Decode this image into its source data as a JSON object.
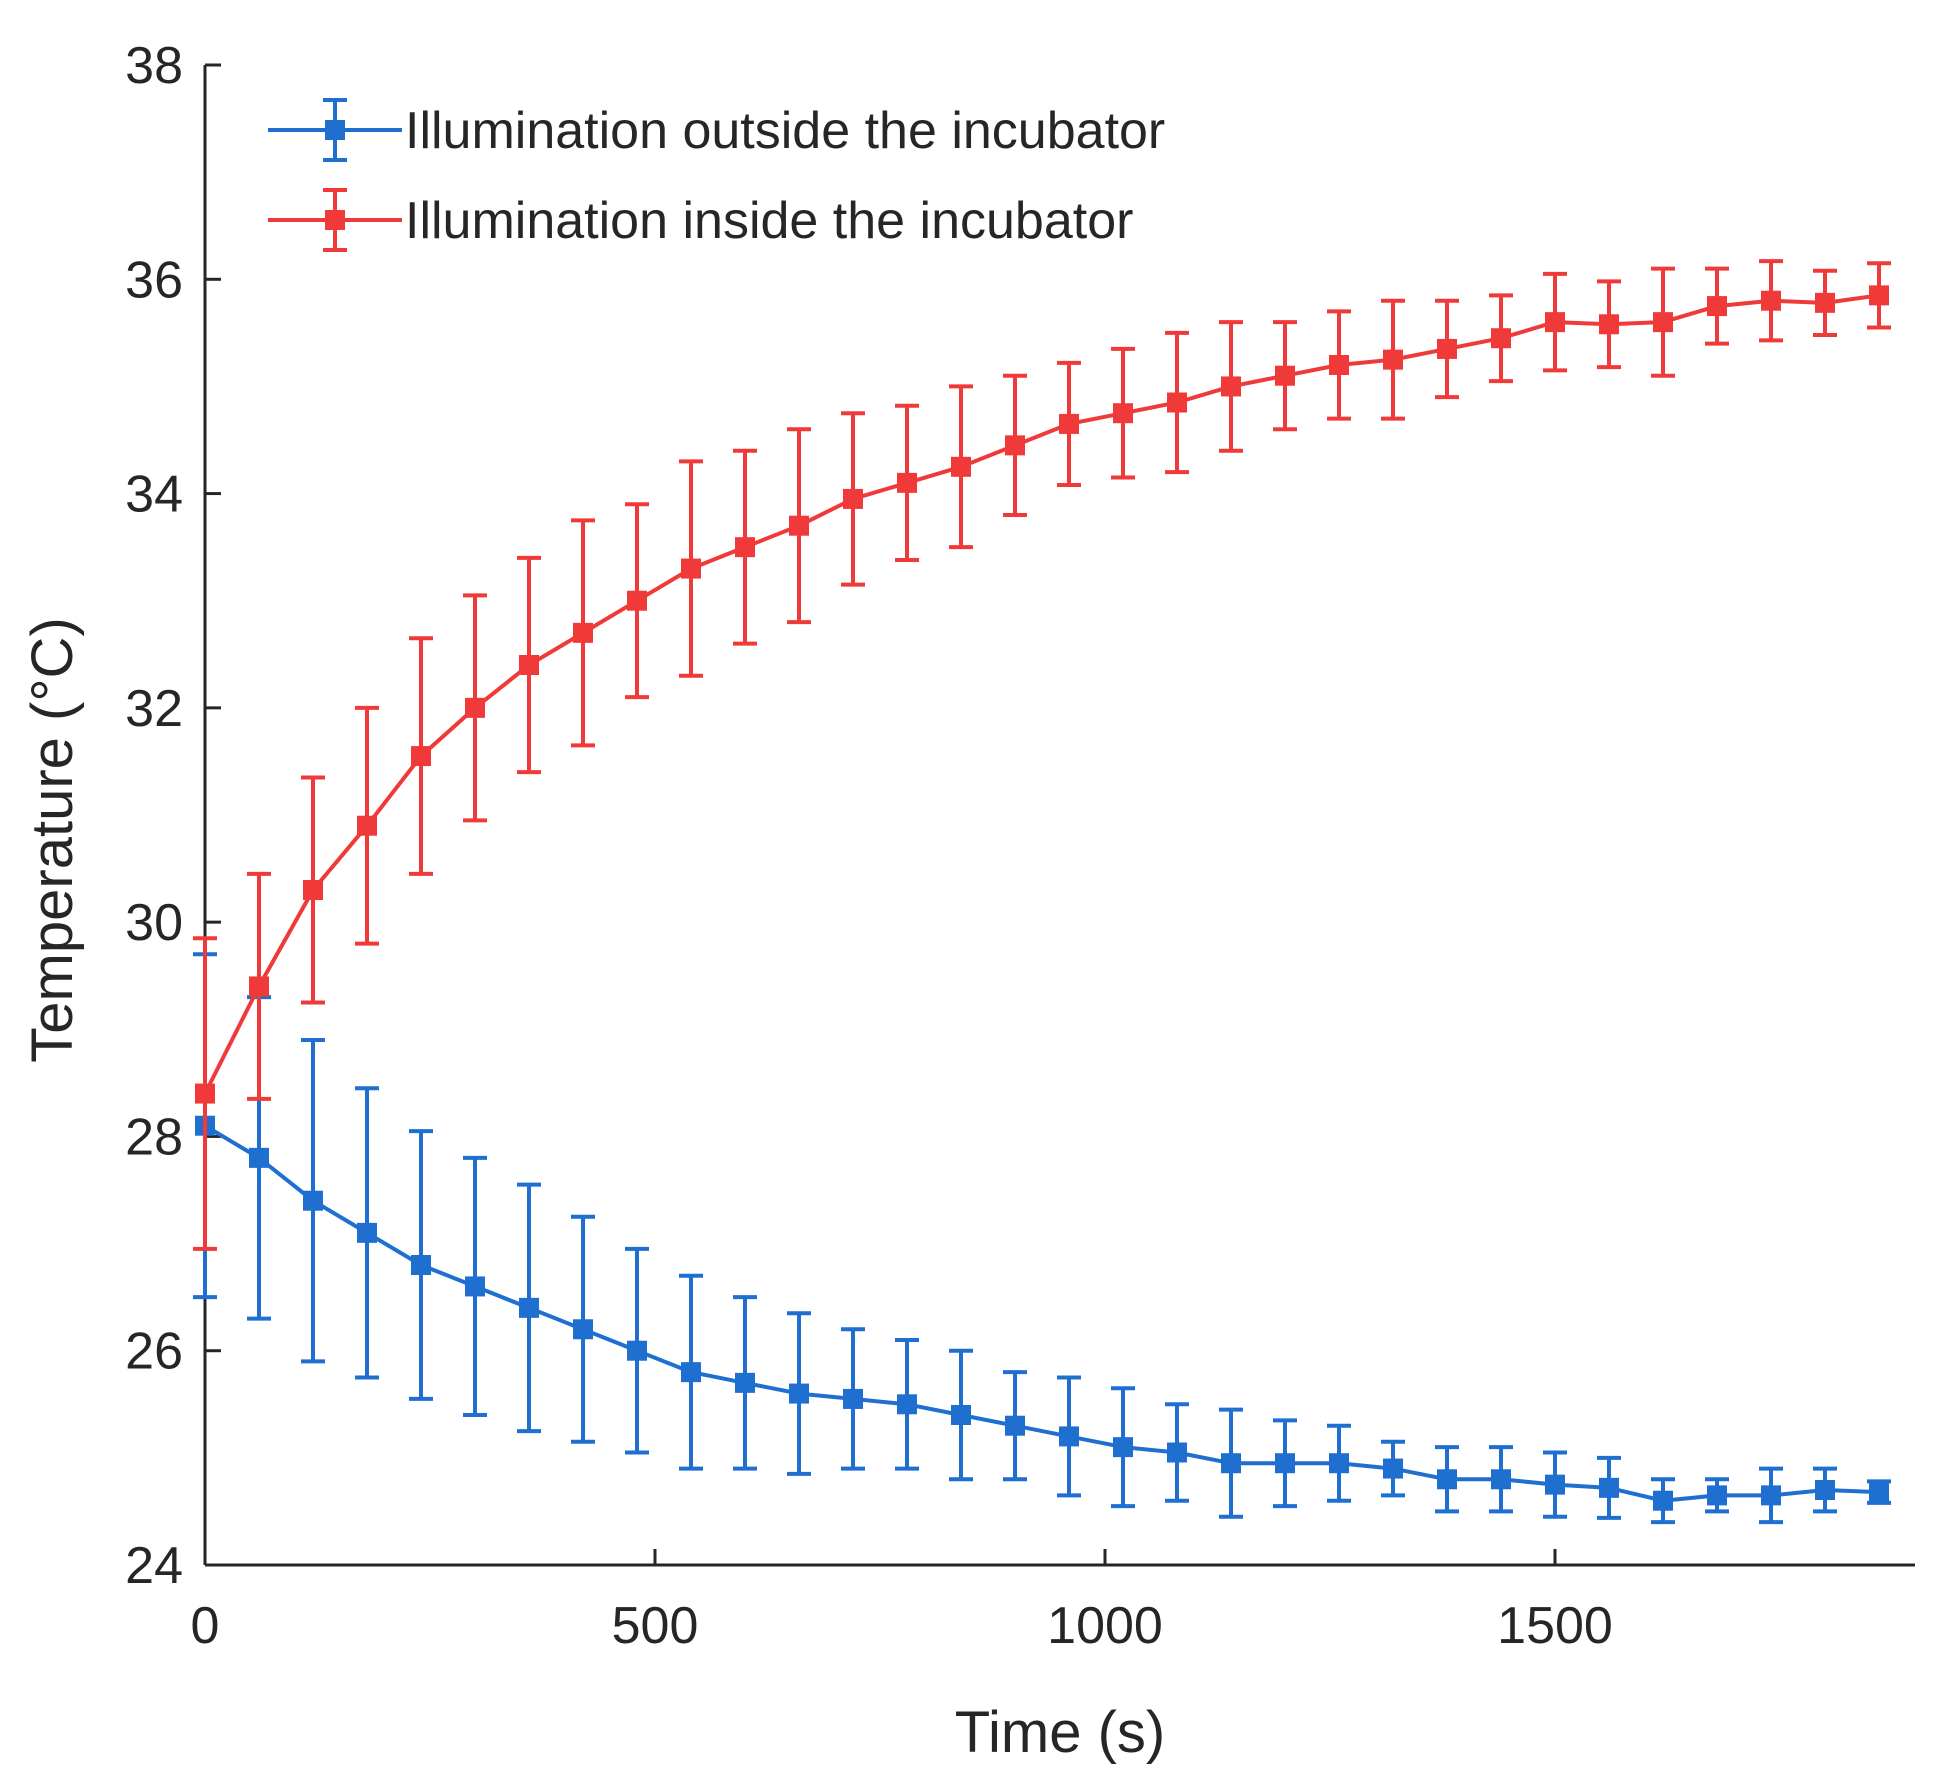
{
  "chart_data": {
    "type": "line",
    "title": "",
    "xlabel": "Time (s)",
    "ylabel": "Temperature (°C)",
    "xlim": [
      0,
      1900
    ],
    "ylim": [
      24,
      38
    ],
    "xticks": [
      0,
      500,
      1000,
      1500
    ],
    "xtick_labels": [
      "0",
      "500",
      "1000",
      "1500"
    ],
    "yticks": [
      24,
      26,
      28,
      30,
      32,
      34,
      36,
      38
    ],
    "ytick_labels": [
      "24",
      "26",
      "28",
      "30",
      "32",
      "34",
      "36",
      "38"
    ],
    "grid": false,
    "legend_position": "top-left",
    "x": [
      0,
      60,
      120,
      180,
      240,
      300,
      360,
      420,
      480,
      540,
      600,
      660,
      720,
      780,
      840,
      900,
      960,
      1020,
      1080,
      1140,
      1200,
      1260,
      1320,
      1380,
      1440,
      1500,
      1560,
      1620,
      1680,
      1740,
      1800,
      1860
    ],
    "series": [
      {
        "name": "Illumination outside the incubator",
        "color": "#1f6fd1",
        "values": [
          28.1,
          27.8,
          27.4,
          27.1,
          26.8,
          26.6,
          26.4,
          26.2,
          26.0,
          25.8,
          25.7,
          25.6,
          25.55,
          25.5,
          25.4,
          25.3,
          25.2,
          25.1,
          25.05,
          24.95,
          24.95,
          24.95,
          24.9,
          24.8,
          24.8,
          24.75,
          24.72,
          24.6,
          24.65,
          24.65,
          24.7,
          24.68
        ],
        "errors": [
          1.6,
          1.5,
          1.5,
          1.35,
          1.25,
          1.2,
          1.15,
          1.05,
          0.95,
          0.9,
          0.8,
          0.75,
          0.65,
          0.6,
          0.6,
          0.5,
          0.55,
          0.55,
          0.45,
          0.5,
          0.4,
          0.35,
          0.25,
          0.3,
          0.3,
          0.3,
          0.28,
          0.2,
          0.15,
          0.25,
          0.2,
          0.1
        ]
      },
      {
        "name": "Illumination inside the incubator",
        "color": "#f03a3a",
        "values": [
          28.4,
          29.4,
          30.3,
          30.9,
          31.55,
          32.0,
          32.4,
          32.7,
          33.0,
          33.3,
          33.5,
          33.7,
          33.95,
          34.1,
          34.25,
          34.45,
          34.65,
          34.75,
          34.85,
          35.0,
          35.1,
          35.2,
          35.25,
          35.35,
          35.45,
          35.6,
          35.58,
          35.6,
          35.75,
          35.8,
          35.78,
          35.85
        ],
        "errors": [
          1.45,
          1.05,
          1.05,
          1.1,
          1.1,
          1.05,
          1.0,
          1.05,
          0.9,
          1.0,
          0.9,
          0.9,
          0.8,
          0.72,
          0.75,
          0.65,
          0.57,
          0.6,
          0.65,
          0.6,
          0.5,
          0.5,
          0.55,
          0.45,
          0.4,
          0.45,
          0.4,
          0.5,
          0.35,
          0.37,
          0.3,
          0.3
        ]
      }
    ]
  }
}
